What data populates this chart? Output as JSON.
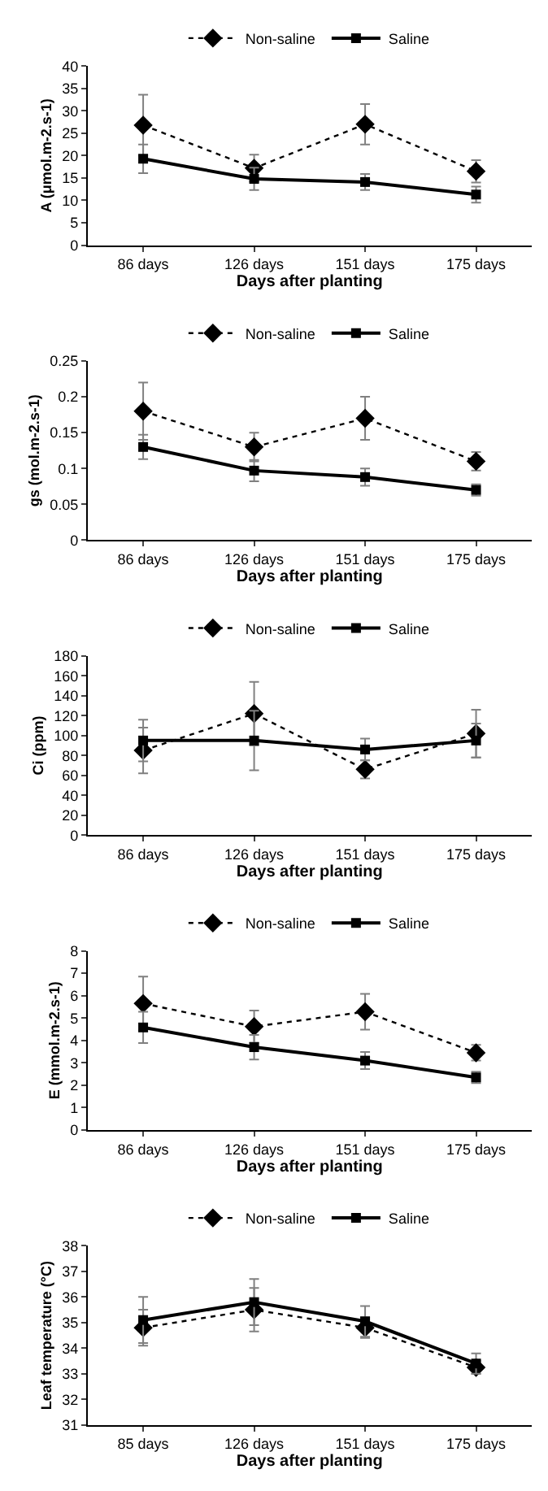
{
  "chart_data": [
    {
      "type": "line",
      "xlabel": "Days after planting",
      "ylabel": "A (μmol.m-2.s-1)",
      "categories": [
        "86 days",
        "126 days",
        "151 days",
        "175 days"
      ],
      "ylim": [
        0,
        40
      ],
      "yticks": [
        0,
        5,
        10,
        15,
        20,
        25,
        30,
        35,
        40
      ],
      "grid": false,
      "legend": "top",
      "series": [
        {
          "name": "Non-saline",
          "color": "#000000",
          "marker": "diamond",
          "line_style": "dotted",
          "values": [
            26.8,
            17.2,
            27,
            16.5
          ],
          "errors": [
            6.8,
            3,
            4.5,
            2.5
          ]
        },
        {
          "name": "Saline",
          "color": "#000000",
          "marker": "square",
          "line_style": "solid",
          "values": [
            19.3,
            14.8,
            14.1,
            11.3
          ],
          "errors": [
            3.2,
            2.5,
            1.8,
            1.8
          ]
        }
      ]
    },
    {
      "type": "line",
      "xlabel": "Days after planting",
      "ylabel": "gs (mol.m-2.s-1)",
      "categories": [
        "86 days",
        "126 days",
        "151 days",
        "175 days"
      ],
      "ylim": [
        0,
        0.25
      ],
      "yticks": [
        0,
        0.05,
        0.1,
        0.15,
        0.2,
        0.25
      ],
      "grid": false,
      "legend": "top",
      "series": [
        {
          "name": "Non-saline",
          "color": "#000000",
          "marker": "diamond",
          "line_style": "dotted",
          "values": [
            0.18,
            0.13,
            0.17,
            0.11
          ],
          "errors": [
            0.04,
            0.02,
            0.03,
            0.013
          ]
        },
        {
          "name": "Saline",
          "color": "#000000",
          "marker": "square",
          "line_style": "solid",
          "values": [
            0.13,
            0.097,
            0.088,
            0.07
          ],
          "errors": [
            0.017,
            0.015,
            0.012,
            0.008
          ]
        }
      ]
    },
    {
      "type": "line",
      "xlabel": "Days after planting",
      "ylabel": "Ci (ppm)",
      "categories": [
        "86 days",
        "126 days",
        "151 days",
        "175 days"
      ],
      "ylim": [
        0,
        180
      ],
      "yticks": [
        0,
        20,
        40,
        60,
        80,
        100,
        120,
        140,
        160,
        180
      ],
      "grid": false,
      "legend": "top",
      "series": [
        {
          "name": "Non-saline",
          "color": "#000000",
          "marker": "diamond",
          "line_style": "dotted",
          "values": [
            85,
            122,
            66,
            102
          ],
          "errors": [
            23,
            32,
            9,
            24
          ]
        },
        {
          "name": "Saline",
          "color": "#000000",
          "marker": "square",
          "line_style": "solid",
          "values": [
            95,
            95,
            86,
            95
          ],
          "errors": [
            21,
            30,
            11,
            17
          ]
        }
      ]
    },
    {
      "type": "line",
      "xlabel": "Days after planting",
      "ylabel": "E (mmol.m-2.s-1)",
      "categories": [
        "86 days",
        "126 days",
        "151 days",
        "175 days"
      ],
      "ylim": [
        0,
        8
      ],
      "yticks": [
        0,
        1,
        2,
        3,
        4,
        5,
        6,
        7,
        8
      ],
      "grid": false,
      "legend": "top",
      "series": [
        {
          "name": "Non-saline",
          "color": "#000000",
          "marker": "diamond",
          "line_style": "dotted",
          "values": [
            5.65,
            4.62,
            5.28,
            3.45
          ],
          "errors": [
            1.2,
            0.72,
            0.8,
            0.35
          ]
        },
        {
          "name": "Saline",
          "color": "#000000",
          "marker": "square",
          "line_style": "solid",
          "values": [
            4.58,
            3.7,
            3.1,
            2.35
          ],
          "errors": [
            0.7,
            0.55,
            0.38,
            0.25
          ]
        }
      ]
    },
    {
      "type": "line",
      "xlabel": "Days after planting",
      "ylabel": "Leaf temperature (°C)",
      "categories": [
        "85 days",
        "126 days",
        "151 days",
        "175 days"
      ],
      "ylim": [
        31,
        38
      ],
      "yticks": [
        31,
        32,
        33,
        34,
        35,
        36,
        37,
        38
      ],
      "grid": false,
      "legend": "top",
      "series": [
        {
          "name": "Non-saline",
          "color": "#000000",
          "marker": "diamond",
          "line_style": "dotted",
          "values": [
            34.8,
            35.5,
            34.8,
            33.25
          ],
          "errors": [
            0.7,
            0.85,
            0.4,
            0.25
          ]
        },
        {
          "name": "Saline",
          "color": "#000000",
          "marker": "square",
          "line_style": "solid",
          "values": [
            35.1,
            35.8,
            35.05,
            33.4
          ],
          "errors": [
            0.9,
            0.9,
            0.6,
            0.4
          ]
        }
      ]
    }
  ]
}
